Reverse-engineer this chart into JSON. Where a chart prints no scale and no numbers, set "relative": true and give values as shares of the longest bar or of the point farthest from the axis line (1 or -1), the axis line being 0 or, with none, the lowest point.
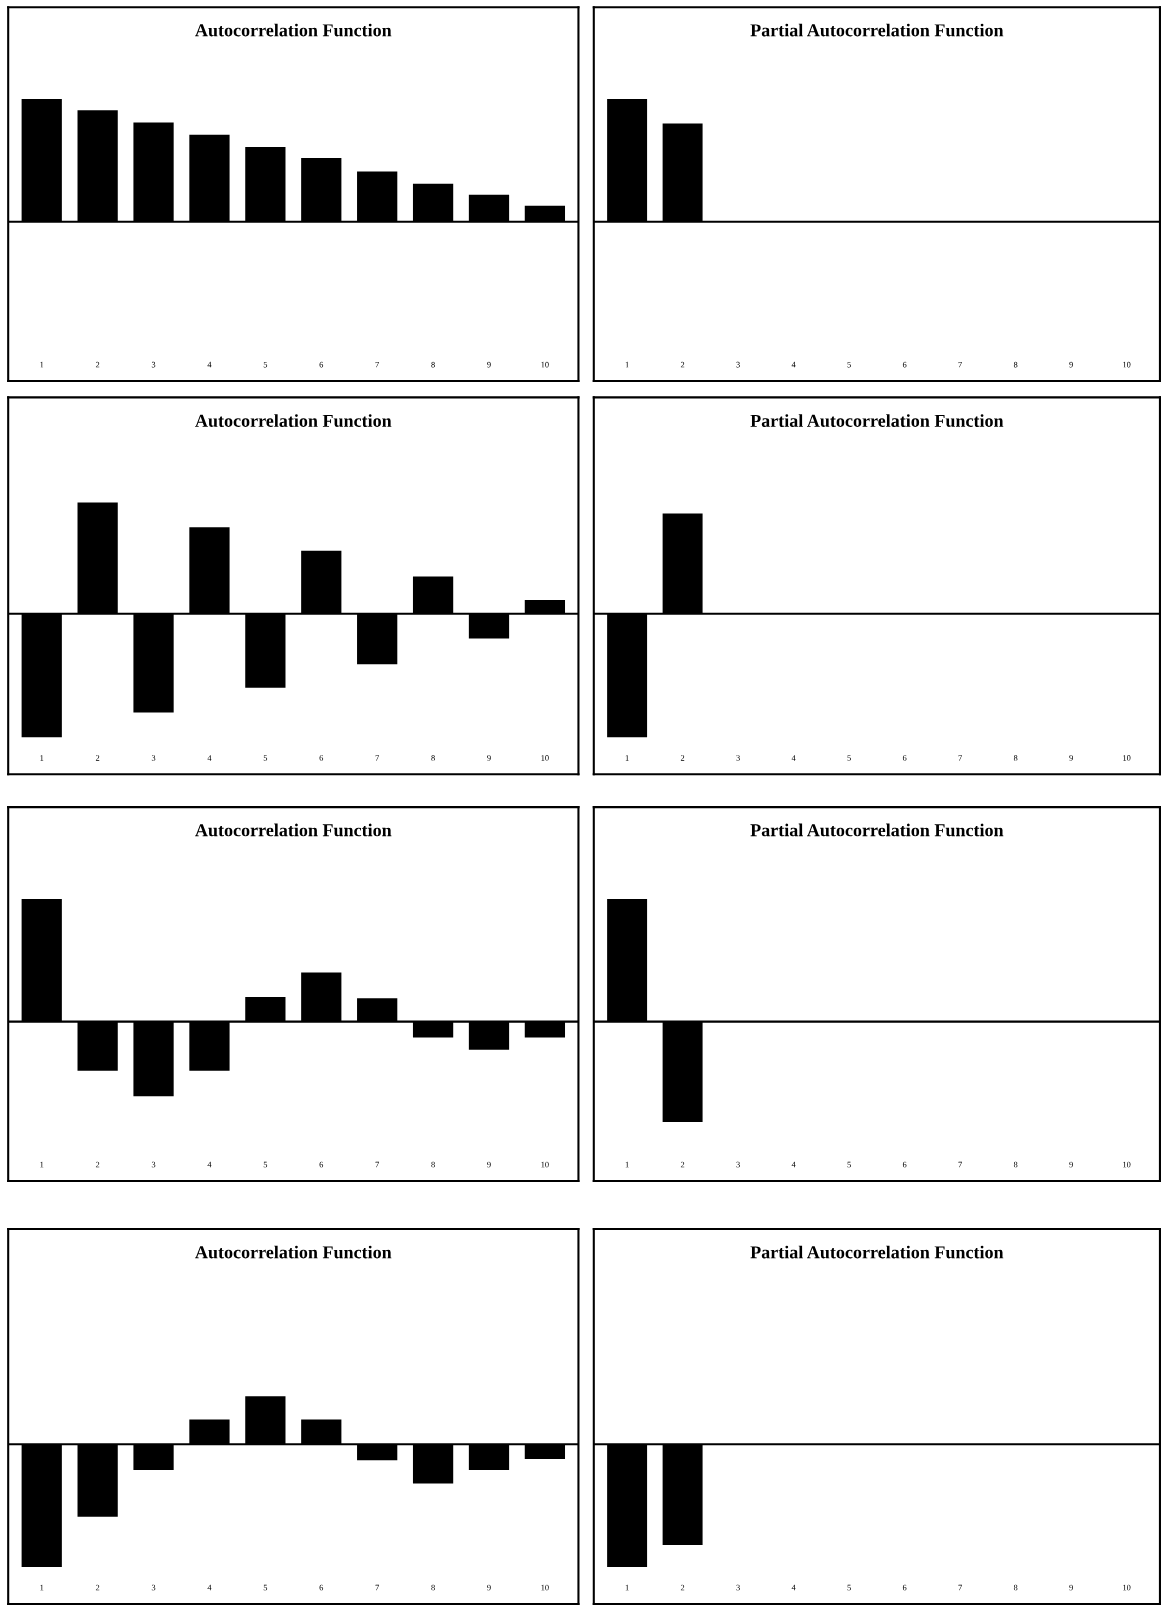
{
  "chart_data": [
    {
      "type": "bar",
      "title": "Autocorrelation Function",
      "categories": [
        "1",
        "2",
        "3",
        "4",
        "5",
        "6",
        "7",
        "8",
        "9",
        "10"
      ],
      "values": [
        1,
        0.91,
        0.81,
        0.71,
        0.61,
        0.52,
        0.41,
        0.31,
        0.22,
        0.13
      ],
      "color": "#000000",
      "relative": true,
      "tick_labels": "x"
    },
    {
      "type": "bar",
      "title": "Partial Autocorrelation Function",
      "categories": [
        "1",
        "2",
        "3",
        "4",
        "5",
        "6",
        "7",
        "8",
        "9",
        "10"
      ],
      "values": [
        1,
        0.8,
        0,
        0,
        0,
        0,
        0,
        0,
        0,
        0
      ],
      "color": "#000000",
      "relative": true,
      "tick_labels": "x"
    },
    {
      "type": "bar",
      "title": "Autocorrelation Function",
      "categories": [
        "1",
        "2",
        "3",
        "4",
        "5",
        "6",
        "7",
        "8",
        "9",
        "10"
      ],
      "values": [
        -1,
        0.9,
        -0.8,
        0.7,
        -0.6,
        0.51,
        -0.41,
        0.3,
        -0.2,
        0.11
      ],
      "color": "#000000",
      "relative": true,
      "tick_labels": "x"
    },
    {
      "type": "bar",
      "title": "Partial Autocorrelation Function",
      "categories": [
        "1",
        "2",
        "3",
        "4",
        "5",
        "6",
        "7",
        "8",
        "9",
        "10"
      ],
      "values": [
        -1,
        0.81,
        0,
        0,
        0,
        0,
        0,
        0,
        0,
        0
      ],
      "color": "#000000",
      "relative": true,
      "tick_labels": "x"
    },
    {
      "type": "bar",
      "title": "Autocorrelation Function",
      "categories": [
        "1",
        "2",
        "3",
        "4",
        "5",
        "6",
        "7",
        "8",
        "9",
        "10"
      ],
      "values": [
        1,
        -0.4,
        -0.61,
        -0.4,
        0.2,
        0.4,
        0.19,
        -0.13,
        -0.23,
        -0.13
      ],
      "color": "#000000",
      "relative": true,
      "tick_labels": "x"
    },
    {
      "type": "bar",
      "title": "Partial Autocorrelation Function",
      "categories": [
        "1",
        "2",
        "3",
        "4",
        "5",
        "6",
        "7",
        "8",
        "9",
        "10"
      ],
      "values": [
        1,
        -0.82,
        0,
        0,
        0,
        0,
        0,
        0,
        0,
        0
      ],
      "color": "#000000",
      "relative": true,
      "tick_labels": "x"
    },
    {
      "type": "bar",
      "title": "Autocorrelation Function",
      "categories": [
        "1",
        "2",
        "3",
        "4",
        "5",
        "6",
        "7",
        "8",
        "9",
        "10"
      ],
      "values": [
        -1,
        -0.59,
        -0.21,
        0.2,
        0.39,
        0.2,
        -0.13,
        -0.32,
        -0.21,
        -0.12
      ],
      "color": "#000000",
      "relative": true,
      "tick_labels": "x"
    },
    {
      "type": "bar",
      "title": "Partial Autocorrelation Function",
      "categories": [
        "1",
        "2",
        "3",
        "4",
        "5",
        "6",
        "7",
        "8",
        "9",
        "10"
      ],
      "values": [
        -1,
        -0.82,
        0,
        0,
        0,
        0,
        0,
        0,
        0,
        0
      ],
      "color": "#000000",
      "relative": true,
      "tick_labels": "x"
    }
  ]
}
